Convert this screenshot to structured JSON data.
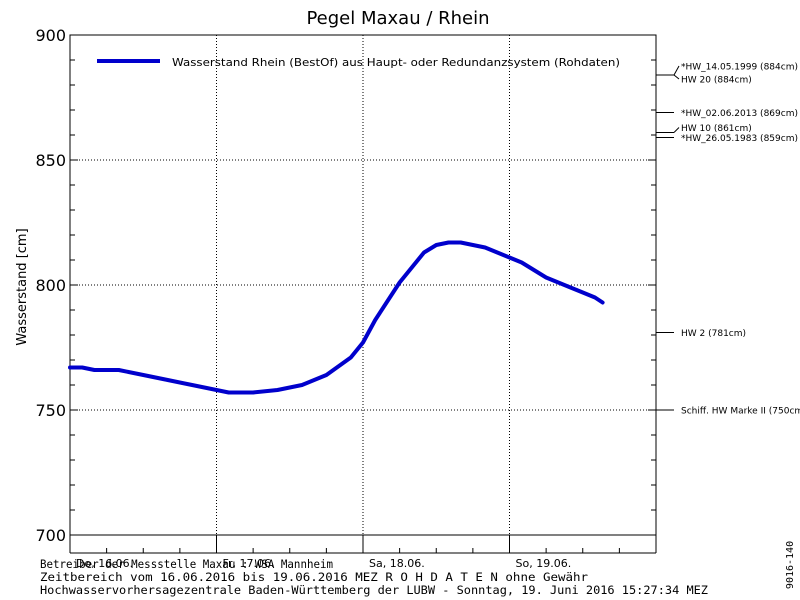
{
  "chart_data": {
    "type": "line",
    "title": "Pegel Maxau / Rhein",
    "ylabel": "Wasserstand [cm]",
    "xlabel": "",
    "ylim": [
      700,
      900
    ],
    "yticks": [
      700,
      750,
      800,
      850,
      900
    ],
    "grid": true,
    "legend_position": "top-left",
    "x_days": [
      "Do, 16.06.",
      "Fr, 17.06.",
      "Sa, 18.06.",
      "So, 19.06."
    ],
    "series": [
      {
        "name": "Wasserstand Rhein (BestOf) aus Haupt- oder Redundanzsystem (Rohdaten)",
        "color": "#0000cc",
        "points": [
          [
            "16.06. 00:00",
            767
          ],
          [
            "16.06. 02:00",
            767
          ],
          [
            "16.06. 04:00",
            766
          ],
          [
            "16.06. 08:00",
            766
          ],
          [
            "16.06. 12:00",
            764
          ],
          [
            "16.06. 16:00",
            762
          ],
          [
            "16.06. 20:00",
            760
          ],
          [
            "17.06. 00:00",
            758
          ],
          [
            "17.06. 02:00",
            757
          ],
          [
            "17.06. 06:00",
            757
          ],
          [
            "17.06. 10:00",
            758
          ],
          [
            "17.06. 14:00",
            760
          ],
          [
            "17.06. 18:00",
            764
          ],
          [
            "17.06. 22:00",
            771
          ],
          [
            "18.06. 00:00",
            777
          ],
          [
            "18.06. 02:00",
            786
          ],
          [
            "18.06. 06:00",
            801
          ],
          [
            "18.06. 10:00",
            813
          ],
          [
            "18.06. 12:00",
            816
          ],
          [
            "18.06. 14:00",
            817
          ],
          [
            "18.06. 16:00",
            817
          ],
          [
            "18.06. 20:00",
            815
          ],
          [
            "18.06. 22:00",
            813
          ],
          [
            "19.06. 00:00",
            811
          ],
          [
            "19.06. 02:00",
            809
          ],
          [
            "19.06. 04:00",
            806
          ],
          [
            "19.06. 06:00",
            803
          ],
          [
            "19.06. 08:00",
            801
          ],
          [
            "19.06. 10:00",
            799
          ],
          [
            "19.06. 12:00",
            797
          ],
          [
            "19.06. 14:00",
            795
          ],
          [
            "19.06. 15:15",
            793
          ]
        ]
      }
    ],
    "reference_levels": [
      {
        "label": "*HW_14.05.1999 (884cm)",
        "value": 884,
        "label_offset": -9
      },
      {
        "label": "HW 20 (884cm)",
        "value": 884,
        "label_offset": 4
      },
      {
        "label": "*HW_02.06.2013 (869cm)",
        "value": 869,
        "label_offset": 0
      },
      {
        "label": "HW 10 (861cm)",
        "value": 861,
        "label_offset": -5
      },
      {
        "label": "*HW_26.05.1983 (859cm)",
        "value": 859,
        "label_offset": 0
      },
      {
        "label": "HW 2 (781cm)",
        "value": 781,
        "label_offset": 0
      },
      {
        "label": "Schiff. HW Marke II (750cm)",
        "value": 750,
        "label_offset": 0
      }
    ]
  },
  "footer": {
    "line1": "Betreiber der Messstelle Maxau : WSA Mannheim",
    "line2": "Zeitbereich vom 16.06.2016 bis 19.06.2016    MEZ    R O H D A T E N ohne Gewähr",
    "line3": "Hochwasservorhersagezentrale Baden-Württemberg der LUBW - Sonntag, 19. Juni 2016 15:27:34 MEZ"
  },
  "side_code": "9016-140"
}
